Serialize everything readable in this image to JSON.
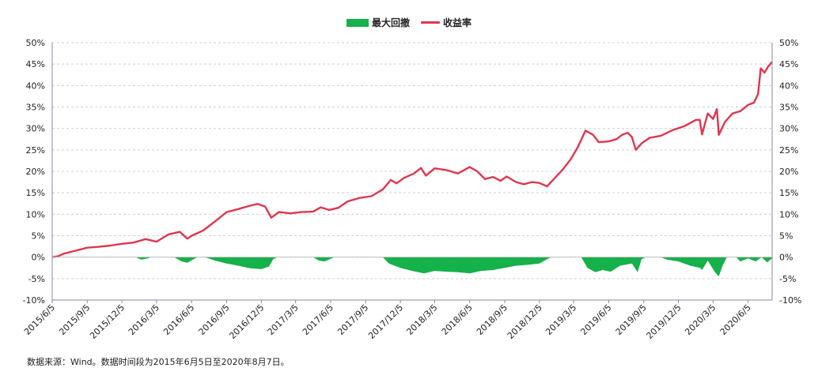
{
  "colors": {
    "return": "#e0364f",
    "drawdown": "#15b14a",
    "grid": "#d0d0d0",
    "axis": "#8a8aa0"
  },
  "legend": [
    {
      "label": "最大回撤",
      "kind": "area",
      "color": "#15b14a"
    },
    {
      "label": "收益率",
      "kind": "line",
      "color": "#e0364f"
    }
  ],
  "source_note": "数据来源：Wind。数据时间段为2015年6月5日至2020年8月7日。",
  "chart_data": {
    "type": "line+area",
    "title": "",
    "xlabel": "",
    "ylabel": "",
    "ylim": [
      -10,
      50
    ],
    "y_unit": "%",
    "yticks": [
      -10,
      -5,
      0,
      5,
      10,
      15,
      20,
      25,
      30,
      35,
      40,
      45,
      50
    ],
    "ytick_labels_left": [
      "-10%",
      "-5%",
      "0%",
      "5%",
      "10%",
      "15%",
      "20%",
      "25%",
      "30%",
      "35%",
      "40%",
      "45%",
      "50%"
    ],
    "ytick_labels_right": [
      "-10%",
      "-5%",
      "0%",
      "5%",
      "10%",
      "15%",
      "20%",
      "25%",
      "30%",
      "35%",
      "40%",
      "45%",
      "50%"
    ],
    "xlim": [
      "2015-06-05",
      "2020-08-07"
    ],
    "xticks": [
      "2015-06-05",
      "2015-09-05",
      "2015-12-05",
      "2016-03-05",
      "2016-06-05",
      "2016-09-05",
      "2016-12-05",
      "2017-03-05",
      "2017-06-05",
      "2017-09-05",
      "2017-12-05",
      "2018-03-05",
      "2018-06-05",
      "2018-09-05",
      "2018-12-05",
      "2019-03-05",
      "2019-06-05",
      "2019-09-05",
      "2019-12-05",
      "2020-03-05",
      "2020-06-05"
    ],
    "xtick_labels": [
      "2015/6/5",
      "2015/9/5",
      "2015/12/5",
      "2016/3/5",
      "2016/6/5",
      "2016/9/5",
      "2016/12/5",
      "2017/3/5",
      "2017/6/5",
      "2017/9/5",
      "2017/12/5",
      "2018/3/5",
      "2018/6/5",
      "2018/9/5",
      "2018/12/5",
      "2019/3/5",
      "2019/6/5",
      "2019/9/5",
      "2019/12/5",
      "2020/3/5",
      "2020/6/5"
    ],
    "grid": true,
    "legend_position": "top-center",
    "series": [
      {
        "name": "收益率",
        "type": "line",
        "points": [
          [
            "2015-06-05",
            0
          ],
          [
            "2015-06-20",
            0.2
          ],
          [
            "2015-07-05",
            0.8
          ],
          [
            "2015-08-05",
            1.5
          ],
          [
            "2015-09-05",
            2.2
          ],
          [
            "2015-10-05",
            2.4
          ],
          [
            "2015-11-05",
            2.7
          ],
          [
            "2015-12-05",
            3.1
          ],
          [
            "2016-01-05",
            3.4
          ],
          [
            "2016-02-05",
            4.2
          ],
          [
            "2016-03-05",
            3.6
          ],
          [
            "2016-04-05",
            5.3
          ],
          [
            "2016-05-05",
            5.9
          ],
          [
            "2016-05-25",
            4.3
          ],
          [
            "2016-06-05",
            5.0
          ],
          [
            "2016-07-05",
            6.2
          ],
          [
            "2016-08-05",
            8.3
          ],
          [
            "2016-09-05",
            10.5
          ],
          [
            "2016-10-05",
            11.2
          ],
          [
            "2016-11-05",
            12.0
          ],
          [
            "2016-11-25",
            12.4
          ],
          [
            "2016-12-15",
            11.8
          ],
          [
            "2016-12-31",
            9.2
          ],
          [
            "2017-01-20",
            10.5
          ],
          [
            "2017-02-20",
            10.2
          ],
          [
            "2017-03-20",
            10.5
          ],
          [
            "2017-04-20",
            10.6
          ],
          [
            "2017-05-10",
            11.6
          ],
          [
            "2017-06-01",
            11.0
          ],
          [
            "2017-06-25",
            11.5
          ],
          [
            "2017-07-20",
            13.0
          ],
          [
            "2017-08-20",
            13.8
          ],
          [
            "2017-09-20",
            14.2
          ],
          [
            "2017-10-20",
            15.8
          ],
          [
            "2017-11-10",
            18.0
          ],
          [
            "2017-11-25",
            17.2
          ],
          [
            "2017-12-15",
            18.5
          ],
          [
            "2018-01-10",
            19.5
          ],
          [
            "2018-01-28",
            20.8
          ],
          [
            "2018-02-10",
            19.0
          ],
          [
            "2018-03-05",
            20.7
          ],
          [
            "2018-04-05",
            20.3
          ],
          [
            "2018-05-05",
            19.5
          ],
          [
            "2018-06-05",
            21.0
          ],
          [
            "2018-06-25",
            20.0
          ],
          [
            "2018-07-15",
            18.2
          ],
          [
            "2018-08-05",
            18.7
          ],
          [
            "2018-08-25",
            17.8
          ],
          [
            "2018-09-10",
            18.8
          ],
          [
            "2018-10-05",
            17.5
          ],
          [
            "2018-10-25",
            17.0
          ],
          [
            "2018-11-15",
            17.5
          ],
          [
            "2018-12-05",
            17.3
          ],
          [
            "2018-12-25",
            16.5
          ],
          [
            "2019-01-15",
            18.5
          ],
          [
            "2019-02-05",
            20.5
          ],
          [
            "2019-02-25",
            22.8
          ],
          [
            "2019-03-15",
            25.5
          ],
          [
            "2019-04-05",
            29.5
          ],
          [
            "2019-04-25",
            28.5
          ],
          [
            "2019-05-10",
            26.8
          ],
          [
            "2019-06-05",
            27.0
          ],
          [
            "2019-06-25",
            27.5
          ],
          [
            "2019-07-10",
            28.5
          ],
          [
            "2019-07-25",
            29.0
          ],
          [
            "2019-08-05",
            28.0
          ],
          [
            "2019-08-15",
            25.0
          ],
          [
            "2019-08-30",
            26.5
          ],
          [
            "2019-09-20",
            27.8
          ],
          [
            "2019-10-20",
            28.3
          ],
          [
            "2019-11-20",
            29.6
          ],
          [
            "2019-12-20",
            30.5
          ],
          [
            "2020-01-20",
            32.0
          ],
          [
            "2020-01-30",
            32.0
          ],
          [
            "2020-02-05",
            28.6
          ],
          [
            "2020-02-20",
            33.5
          ],
          [
            "2020-03-05",
            32.2
          ],
          [
            "2020-03-15",
            34.5
          ],
          [
            "2020-03-20",
            28.5
          ],
          [
            "2020-04-05",
            31.5
          ],
          [
            "2020-04-25",
            33.5
          ],
          [
            "2020-05-15",
            34.0
          ],
          [
            "2020-06-05",
            35.5
          ],
          [
            "2020-06-20",
            36.0
          ],
          [
            "2020-07-01",
            38.0
          ],
          [
            "2020-07-08",
            44.0
          ],
          [
            "2020-07-18",
            43.0
          ],
          [
            "2020-07-28",
            44.5
          ],
          [
            "2020-08-07",
            45.5
          ]
        ]
      },
      {
        "name": "最大回撤",
        "type": "area",
        "points": [
          [
            "2015-06-05",
            0
          ],
          [
            "2016-01-10",
            0
          ],
          [
            "2016-01-25",
            -0.6
          ],
          [
            "2016-02-10",
            -0.3
          ],
          [
            "2016-02-20",
            0
          ],
          [
            "2016-04-20",
            0
          ],
          [
            "2016-05-10",
            -1.0
          ],
          [
            "2016-05-25",
            -1.3
          ],
          [
            "2016-06-10",
            -0.5
          ],
          [
            "2016-06-20",
            0
          ],
          [
            "2016-07-10",
            0
          ],
          [
            "2016-08-05",
            -0.8
          ],
          [
            "2016-09-05",
            -1.5
          ],
          [
            "2016-10-05",
            -2.0
          ],
          [
            "2016-11-05",
            -2.6
          ],
          [
            "2016-12-05",
            -2.8
          ],
          [
            "2016-12-25",
            -2.2
          ],
          [
            "2017-01-05",
            -0.5
          ],
          [
            "2017-01-15",
            0
          ],
          [
            "2017-04-20",
            0
          ],
          [
            "2017-05-05",
            -0.8
          ],
          [
            "2017-05-20",
            -1.0
          ],
          [
            "2017-06-05",
            -0.4
          ],
          [
            "2017-06-15",
            0
          ],
          [
            "2017-10-20",
            0
          ],
          [
            "2017-11-05",
            -1.5
          ],
          [
            "2017-12-05",
            -2.5
          ],
          [
            "2018-01-05",
            -3.2
          ],
          [
            "2018-02-05",
            -3.8
          ],
          [
            "2018-03-05",
            -3.2
          ],
          [
            "2018-04-05",
            -3.4
          ],
          [
            "2018-05-05",
            -3.5
          ],
          [
            "2018-06-05",
            -3.8
          ],
          [
            "2018-07-05",
            -3.2
          ],
          [
            "2018-08-05",
            -3.0
          ],
          [
            "2018-09-05",
            -2.5
          ],
          [
            "2018-10-05",
            -2.0
          ],
          [
            "2018-11-05",
            -1.8
          ],
          [
            "2018-12-05",
            -1.5
          ],
          [
            "2018-12-25",
            -0.5
          ],
          [
            "2019-01-05",
            0
          ],
          [
            "2019-03-25",
            0
          ],
          [
            "2019-04-10",
            -2.5
          ],
          [
            "2019-05-01",
            -3.5
          ],
          [
            "2019-05-20",
            -3.0
          ],
          [
            "2019-06-10",
            -3.4
          ],
          [
            "2019-07-05",
            -2.0
          ],
          [
            "2019-08-05",
            -1.5
          ],
          [
            "2019-08-20",
            -3.5
          ],
          [
            "2019-08-30",
            -0.5
          ],
          [
            "2019-09-10",
            0
          ],
          [
            "2019-10-20",
            0
          ],
          [
            "2019-11-05",
            -0.6
          ],
          [
            "2019-12-05",
            -1.0
          ],
          [
            "2020-01-05",
            -2.0
          ],
          [
            "2020-01-31",
            -2.5
          ],
          [
            "2020-02-05",
            -3.0
          ],
          [
            "2020-02-20",
            -0.8
          ],
          [
            "2020-03-10",
            -3.5
          ],
          [
            "2020-03-20",
            -4.5
          ],
          [
            "2020-03-30",
            -2.0
          ],
          [
            "2020-04-10",
            0
          ],
          [
            "2020-05-05",
            0
          ],
          [
            "2020-05-15",
            -1.0
          ],
          [
            "2020-06-05",
            -0.3
          ],
          [
            "2020-06-25",
            -1.0
          ],
          [
            "2020-07-10",
            0
          ],
          [
            "2020-07-25",
            -1.2
          ],
          [
            "2020-08-07",
            -0.3
          ]
        ]
      }
    ]
  }
}
